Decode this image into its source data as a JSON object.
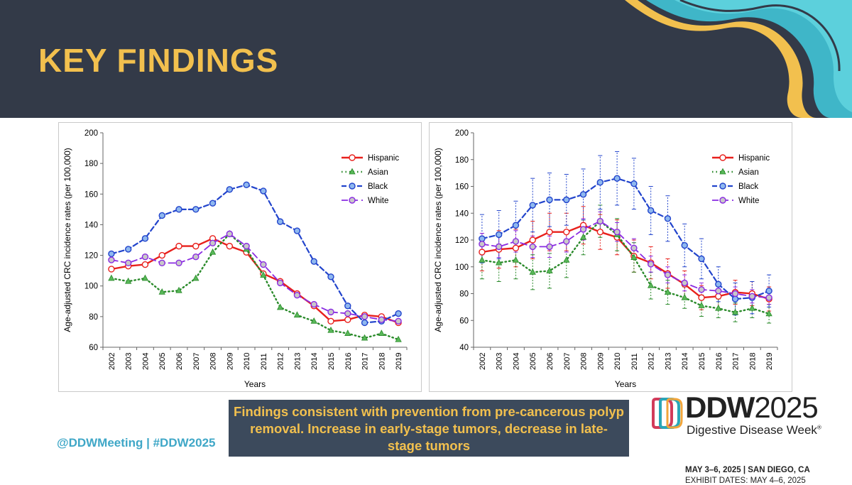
{
  "slide": {
    "title": "KEY FINDINGS",
    "caption": "Findings consistent with prevention from pre-cancerous polyp removal.  Increase in early-stage tumors, decrease in late-stage tumors",
    "social": "@DDWMeeting | #DDW2025"
  },
  "logo": {
    "ddw_bold": "DDW",
    "year": "2025",
    "subtitle": "Digestive Disease Week",
    "registered": "®",
    "dates": "MAY 3–6, 2025 | SAN DIEGO, CA",
    "exhibit": "EXHIBIT DATES: MAY 4–6, 2025"
  },
  "colors": {
    "header_bg": "#333a48",
    "title": "#f2c04e",
    "caption_bg": "#3c4a5c",
    "social": "#3fa7c7",
    "hispanic": "#e8201c",
    "asian": "#2a8a2a",
    "black": "#2244cc",
    "white": "#8a2be2"
  },
  "chart_data": [
    {
      "type": "line",
      "title": "",
      "xlabel": "Years",
      "ylabel": "Age-adjusted CRC incidence rates (per 100,000)",
      "ylim": [
        60,
        200
      ],
      "yticks": [
        60,
        80,
        100,
        120,
        140,
        160,
        180,
        200
      ],
      "categories": [
        "2002",
        "2003",
        "2004",
        "2005",
        "2006",
        "2007",
        "2008",
        "2009",
        "2010",
        "2011",
        "2012",
        "2013",
        "2014",
        "2015",
        "2016",
        "2017",
        "2018",
        "2019"
      ],
      "legend_position": "top-right",
      "error_bars": false,
      "series": [
        {
          "name": "Hispanic",
          "values": [
            111,
            113,
            114,
            120,
            126,
            126,
            131,
            126,
            122,
            108,
            103,
            95,
            87,
            77,
            78,
            81,
            80,
            76
          ]
        },
        {
          "name": "Asian",
          "values": [
            105,
            103,
            105,
            96,
            97,
            105,
            122,
            134,
            124,
            107,
            86,
            81,
            77,
            71,
            69,
            66,
            69,
            65
          ]
        },
        {
          "name": "Black",
          "values": [
            121,
            124,
            131,
            146,
            150,
            150,
            154,
            163,
            166,
            162,
            142,
            136,
            116,
            106,
            87,
            76,
            77,
            82
          ]
        },
        {
          "name": "White",
          "values": [
            117,
            115,
            119,
            115,
            115,
            119,
            128,
            134,
            126,
            114,
            102,
            94,
            88,
            83,
            82,
            80,
            78,
            77
          ]
        }
      ]
    },
    {
      "type": "line",
      "title": "",
      "xlabel": "Years",
      "ylabel": "Age-adjusted CRC incidence rates (per 100,000)",
      "ylim": [
        40,
        200
      ],
      "yticks": [
        40,
        60,
        80,
        100,
        120,
        140,
        160,
        180,
        200
      ],
      "categories": [
        "2002",
        "2003",
        "2004",
        "2005",
        "2006",
        "2007",
        "2008",
        "2009",
        "2010",
        "2011",
        "2012",
        "2013",
        "2014",
        "2015",
        "2016",
        "2017",
        "2018",
        "2019"
      ],
      "legend_position": "top-right",
      "error_bars": true,
      "series": [
        {
          "name": "Hispanic",
          "values": [
            111,
            113,
            114,
            120,
            126,
            126,
            131,
            126,
            122,
            108,
            103,
            95,
            87,
            77,
            78,
            81,
            80,
            76
          ],
          "error": [
            14,
            14,
            14,
            14,
            14,
            14,
            14,
            13,
            13,
            12,
            12,
            11,
            10,
            9,
            9,
            9,
            9,
            9
          ]
        },
        {
          "name": "Asian",
          "values": [
            105,
            103,
            105,
            96,
            97,
            105,
            122,
            134,
            124,
            107,
            86,
            81,
            77,
            71,
            69,
            66,
            69,
            65
          ],
          "error": [
            14,
            14,
            14,
            13,
            13,
            13,
            13,
            12,
            12,
            11,
            10,
            9,
            8,
            8,
            7,
            7,
            7,
            7
          ]
        },
        {
          "name": "Black",
          "values": [
            121,
            124,
            131,
            146,
            150,
            150,
            154,
            163,
            166,
            162,
            142,
            136,
            116,
            106,
            87,
            76,
            77,
            82
          ],
          "error": [
            18,
            18,
            18,
            20,
            20,
            19,
            19,
            20,
            20,
            19,
            18,
            17,
            16,
            15,
            13,
            12,
            12,
            12
          ]
        },
        {
          "name": "White",
          "values": [
            117,
            115,
            119,
            115,
            115,
            119,
            128,
            134,
            126,
            114,
            102,
            94,
            88,
            83,
            82,
            80,
            78,
            77
          ],
          "error": [
            8,
            8,
            8,
            8,
            8,
            8,
            8,
            7,
            7,
            7,
            6,
            6,
            6,
            5,
            5,
            5,
            5,
            5
          ]
        }
      ]
    }
  ]
}
